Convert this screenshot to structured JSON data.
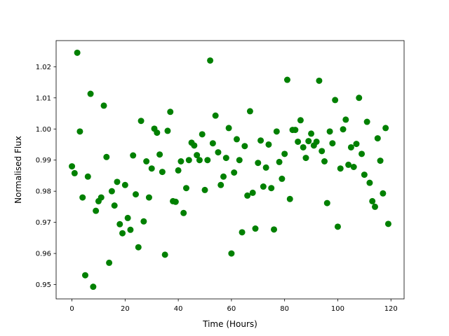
{
  "chart_data": {
    "type": "scatter",
    "x_label": "Time (Hours)",
    "y_label": "Normalised Flux",
    "color": "#008000",
    "x": [
      0,
      1,
      2,
      3,
      4,
      5,
      6,
      7,
      8,
      9,
      10,
      11,
      12,
      13,
      14,
      15,
      16,
      17,
      18,
      19,
      20,
      21,
      22,
      23,
      24,
      25,
      26,
      27,
      28,
      29,
      30,
      31,
      32,
      33,
      34,
      35,
      36,
      37,
      38,
      39,
      40,
      41,
      42,
      43,
      44,
      45,
      46,
      47,
      48,
      49,
      50,
      51,
      52,
      53,
      54,
      55,
      56,
      57,
      58,
      59,
      60,
      61,
      62,
      63,
      64,
      65,
      66,
      67,
      68,
      69,
      70,
      71,
      72,
      73,
      74,
      75,
      76,
      77,
      78,
      79,
      80,
      81,
      82,
      83,
      84,
      85,
      86,
      87,
      88,
      89,
      90,
      91,
      92,
      93,
      94,
      95,
      96,
      97,
      98,
      99,
      100,
      101,
      102,
      103,
      104,
      105,
      106,
      107,
      108,
      109,
      110,
      111,
      112,
      113,
      114,
      115,
      116,
      117,
      118,
      119
    ],
    "y": [
      0.988,
      0.9858,
      1.0245,
      0.9992,
      0.978,
      0.953,
      0.9847,
      1.0113,
      0.9493,
      0.9737,
      0.9768,
      0.978,
      1.0075,
      0.991,
      0.957,
      0.98,
      0.9754,
      0.983,
      0.9694,
      0.9665,
      0.982,
      0.9714,
      0.9676,
      0.9915,
      0.979,
      0.962,
      1.0026,
      0.9703,
      0.9896,
      0.978,
      0.9873,
      1.0001,
      0.9988,
      0.9918,
      0.9862,
      0.9596,
      0.9994,
      1.0055,
      0.9768,
      0.9766,
      0.9867,
      0.9896,
      0.973,
      0.981,
      0.99,
      0.9956,
      0.9947,
      0.9916,
      0.99,
      0.9983,
      0.9804,
      0.99,
      1.022,
      0.9954,
      1.0043,
      0.9925,
      0.982,
      0.9847,
      0.9907,
      1.0003,
      0.96,
      0.986,
      0.9967,
      0.99,
      0.9668,
      0.9945,
      0.9786,
      1.0057,
      0.9795,
      0.968,
      0.9891,
      0.9963,
      0.9815,
      0.9876,
      0.995,
      0.981,
      0.9677,
      0.9992,
      0.9894,
      0.984,
      0.992,
      1.0158,
      0.9775,
      0.9997,
      0.9997,
      0.9959,
      1.0028,
      0.9941,
      0.9907,
      0.9961,
      0.9985,
      0.9947,
      0.9959,
      1.0155,
      0.9929,
      0.9896,
      0.9762,
      0.9992,
      0.9954,
      1.0093,
      0.9686,
      0.9873,
      0.9999,
      1.003,
      0.9885,
      0.9941,
      0.9878,
      0.9952,
      1.01,
      0.992,
      0.9853,
      1.0023,
      0.9827,
      0.9768,
      0.975,
      0.997,
      0.9898,
      0.9793,
      1.0003,
      0.9695
    ],
    "xlim": [
      -5.95,
      124.95
    ],
    "ylim": [
      0.9454,
      1.0284
    ],
    "xticks": [
      0,
      20,
      40,
      60,
      80,
      100,
      120
    ],
    "yticks": [
      0.95,
      0.96,
      0.97,
      0.98,
      0.99,
      {
        "value": 1.0,
        "label": "1.00"
      },
      1.01,
      1.02
    ]
  }
}
